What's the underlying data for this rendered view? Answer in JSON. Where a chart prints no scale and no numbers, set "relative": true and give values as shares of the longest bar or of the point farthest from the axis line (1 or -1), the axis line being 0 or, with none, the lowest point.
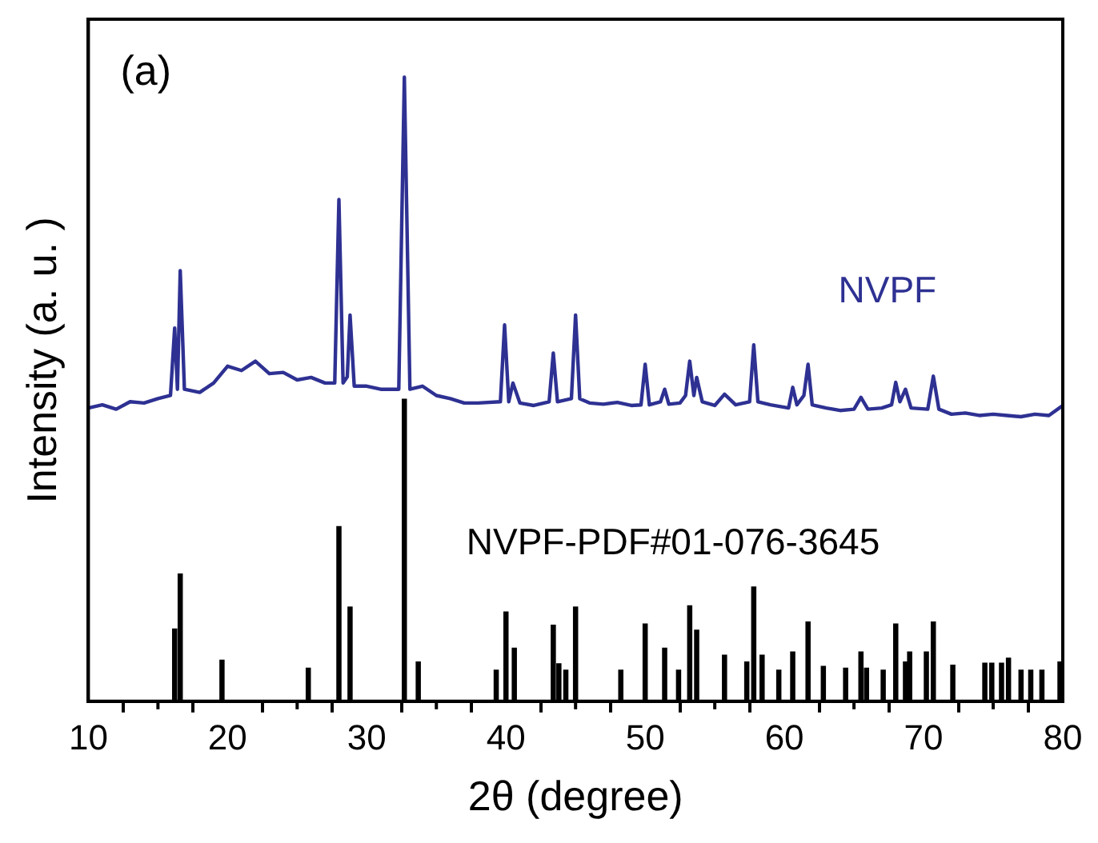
{
  "chart_data": {
    "type": "line",
    "relative": true,
    "xlabel": "2θ (degree)",
    "ylabel": "Intensity (a. u. )",
    "xlim": [
      10,
      80
    ],
    "xticks": [
      10,
      {
        "value": 15,
        "label": null
      },
      20,
      {
        "value": 25,
        "label": null
      },
      30,
      {
        "value": 35,
        "label": null
      },
      40,
      {
        "value": 45,
        "label": null
      },
      50,
      {
        "value": 55,
        "label": null
      },
      60,
      {
        "value": 65,
        "label": null
      },
      70,
      {
        "value": 75,
        "label": null
      },
      80
    ],
    "grid": false,
    "legend": false,
    "marker": "none",
    "line_style": "solid",
    "annotations": [
      "(a)"
    ],
    "series": [
      {
        "name": "NVPF",
        "color": "#2e3192",
        "x": [
          10,
          11,
          12,
          13,
          14,
          15,
          15.9,
          16.2,
          16.4,
          16.6,
          16.9,
          18,
          19,
          20,
          21,
          22,
          23,
          24,
          25,
          26,
          27,
          27.7,
          28.0,
          28.3,
          28.6,
          28.8,
          29.1,
          30,
          31,
          32.3,
          32.7,
          33.1,
          34,
          35,
          36,
          37,
          38,
          39.6,
          39.9,
          40.2,
          40.5,
          41,
          42,
          43.1,
          43.4,
          43.7,
          44.7,
          45.0,
          45.3,
          46,
          47,
          48,
          49,
          49.7,
          50.0,
          50.3,
          51.1,
          51.4,
          51.7,
          52.5,
          52.9,
          53.2,
          53.5,
          53.7,
          54.1,
          55,
          55.7,
          56.5,
          57.5,
          57.8,
          58.1,
          59,
          60.3,
          60.6,
          60.9,
          61.4,
          61.7,
          62,
          63,
          64,
          65,
          65.5,
          66,
          67,
          67.7,
          68.0,
          68.3,
          68.7,
          69.1,
          70.3,
          70.7,
          71.1,
          72,
          73,
          74,
          75,
          76,
          77,
          78,
          79,
          80
        ],
        "values": [
          0.47,
          0.475,
          0.468,
          0.48,
          0.478,
          0.485,
          0.49,
          0.598,
          0.5,
          0.69,
          0.5,
          0.495,
          0.51,
          0.537,
          0.53,
          0.545,
          0.525,
          0.527,
          0.515,
          0.519,
          0.51,
          0.51,
          0.804,
          0.51,
          0.52,
          0.619,
          0.505,
          0.505,
          0.5,
          0.5,
          1.0,
          0.5,
          0.505,
          0.49,
          0.485,
          0.478,
          0.478,
          0.48,
          0.603,
          0.48,
          0.51,
          0.478,
          0.474,
          0.48,
          0.558,
          0.48,
          0.485,
          0.619,
          0.485,
          0.478,
          0.476,
          0.479,
          0.474,
          0.475,
          0.54,
          0.475,
          0.48,
          0.5,
          0.476,
          0.478,
          0.49,
          0.545,
          0.49,
          0.519,
          0.48,
          0.474,
          0.492,
          0.475,
          0.48,
          0.571,
          0.48,
          0.475,
          0.47,
          0.503,
          0.475,
          0.49,
          0.54,
          0.475,
          0.47,
          0.466,
          0.468,
          0.487,
          0.468,
          0.47,
          0.475,
          0.511,
          0.48,
          0.5,
          0.47,
          0.468,
          0.521,
          0.468,
          0.46,
          0.462,
          0.458,
          0.46,
          0.458,
          0.456,
          0.46,
          0.458,
          0.474
        ]
      },
      {
        "name": "NVPF-PDF#01-076-3645",
        "type": "bar",
        "color": "#000000",
        "x": [
          16.2,
          16.6,
          19.6,
          25.8,
          28.0,
          28.8,
          32.7,
          33.7,
          39.3,
          40.0,
          40.6,
          43.4,
          43.8,
          44.3,
          45.0,
          48.25,
          50.0,
          51.4,
          52.4,
          53.2,
          53.7,
          55.7,
          57.3,
          57.8,
          58.4,
          59.6,
          60.6,
          61.7,
          62.8,
          64.4,
          65.5,
          65.9,
          67.1,
          68.0,
          68.7,
          69.0,
          70.2,
          70.7,
          72.1,
          74.4,
          74.9,
          75.6,
          76.1,
          77.0,
          77.7,
          78.5,
          79.8
        ],
        "values": [
          0.116,
          0.204,
          0.066,
          0.053,
          0.28,
          0.151,
          0.484,
          0.063,
          0.05,
          0.143,
          0.085,
          0.122,
          0.06,
          0.05,
          0.151,
          0.05,
          0.124,
          0.085,
          0.05,
          0.153,
          0.114,
          0.074,
          0.063,
          0.183,
          0.074,
          0.05,
          0.079,
          0.127,
          0.056,
          0.053,
          0.079,
          0.053,
          0.05,
          0.124,
          0.063,
          0.079,
          0.079,
          0.127,
          0.058,
          0.061,
          0.061,
          0.061,
          0.069,
          0.05,
          0.05,
          0.05,
          0.063
        ]
      }
    ]
  }
}
